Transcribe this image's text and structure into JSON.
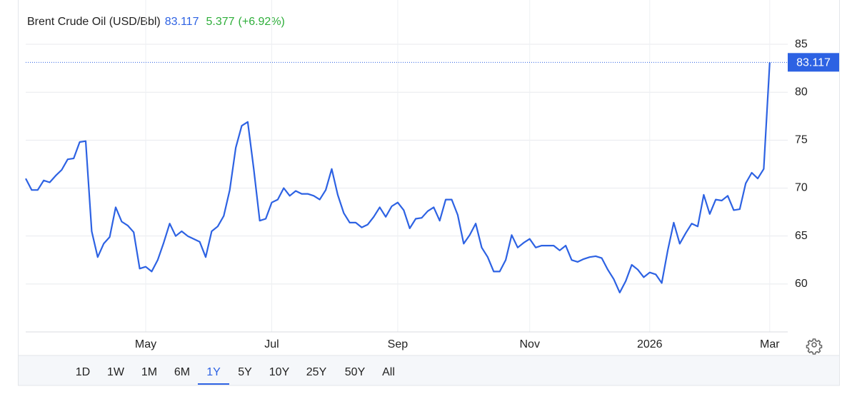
{
  "chart_data": {
    "type": "line",
    "title": "Brent Crude Oil (USD/Bbl)",
    "change": "5.377",
    "change_percent": "(+6.92%)",
    "series": [
      {
        "color": "#2d62e3",
        "values": [
          71,
          69.8,
          69.8,
          70.8,
          70.6,
          71.3,
          71.9,
          73,
          73.1,
          74.8,
          74.9,
          65.5,
          62.8,
          64.2,
          64.9,
          68,
          66.5,
          66.1,
          65.4,
          61.6,
          61.8,
          61.3,
          62.5,
          64.3,
          66.3,
          65,
          65.5,
          65,
          64.7,
          64.4,
          62.8,
          65.5,
          66,
          67.1,
          69.8,
          74.2,
          76.5,
          76.9,
          72,
          66.6,
          66.8,
          68.5,
          68.8,
          70,
          69.2,
          69.7,
          69.4,
          69.4,
          69.2,
          68.8,
          69.8,
          72,
          69.3,
          67.4,
          66.4,
          66.4,
          65.9,
          66.2,
          67,
          68,
          67,
          68.1,
          68.5,
          67.7,
          65.8,
          66.8,
          66.9,
          67.6,
          68,
          66.6,
          68.8,
          68.8,
          67.2,
          64.2,
          65.1,
          66.3,
          63.8,
          62.8,
          61.3,
          61.3,
          62.5,
          65.1,
          63.8,
          64.3,
          64.7,
          63.8,
          64,
          64,
          64,
          63.5,
          64,
          62.5,
          62.3,
          62.6,
          62.8,
          62.9,
          62.7,
          61.5,
          60.5,
          59.1,
          60.3,
          62,
          61.5,
          60.7,
          61.2,
          61,
          60.1,
          63.5,
          66.4,
          64.2,
          65.3,
          66.3,
          66,
          69.3,
          67.3,
          68.8,
          68.7,
          69.2,
          67.7,
          67.8,
          70.5,
          71.6,
          71,
          72,
          83.117
        ]
      }
    ],
    "xlim": [
      0,
      127
    ],
    "xticks": [
      {
        "value": 20,
        "label": "May"
      },
      {
        "value": 41,
        "label": "Jul"
      },
      {
        "value": 62,
        "label": "Sep"
      },
      {
        "value": 84,
        "label": "Nov"
      },
      {
        "value": 104,
        "label": "2026"
      },
      {
        "value": 124,
        "label": "Mar"
      }
    ],
    "ylim": [
      55,
      86
    ],
    "yticks": [
      60,
      65,
      70,
      75,
      80,
      85
    ],
    "grid": true,
    "ranges": [
      "1D",
      "1W",
      "1M",
      "6M",
      "1Y",
      "5Y",
      "10Y",
      "25Y",
      "50Y",
      "All"
    ],
    "selected_range": "1Y"
  }
}
